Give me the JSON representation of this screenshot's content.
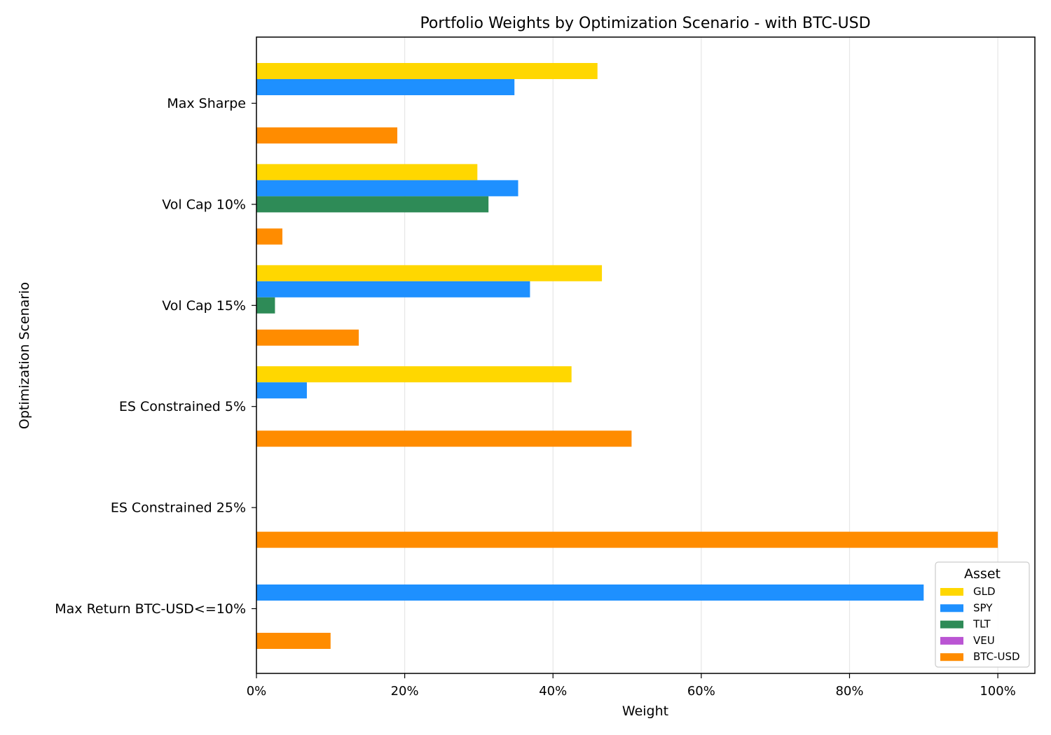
{
  "chart_data": {
    "type": "bar",
    "orientation": "horizontal",
    "title": "Portfolio Weights by Optimization Scenario - with BTC-USD",
    "xlabel": "Weight",
    "ylabel": "Optimization Scenario",
    "xlim": [
      0,
      1.05
    ],
    "x_ticks": [
      0,
      0.2,
      0.4,
      0.6,
      0.8,
      1.0
    ],
    "x_tick_labels": [
      "0%",
      "20%",
      "40%",
      "60%",
      "80%",
      "100%"
    ],
    "grid": "vertical",
    "categories": [
      "Max Sharpe",
      "Vol Cap 10%",
      "Vol Cap 15%",
      "ES Constrained 5%",
      "ES Constrained 25%",
      "Max Return BTC-USD<=10%"
    ],
    "series": [
      {
        "name": "GLD",
        "color": "#FFD700",
        "values": [
          0.46,
          0.298,
          0.466,
          0.425,
          0.0,
          0.0
        ]
      },
      {
        "name": "SPY",
        "color": "#1E90FF",
        "values": [
          0.348,
          0.353,
          0.369,
          0.068,
          0.0,
          0.9
        ]
      },
      {
        "name": "TLT",
        "color": "#2E8B57",
        "values": [
          0.0,
          0.313,
          0.025,
          0.0,
          0.0,
          0.0
        ]
      },
      {
        "name": "VEU",
        "color": "#BA55D3",
        "values": [
          0.0,
          0.0,
          0.0,
          0.0,
          0.0,
          0.0
        ]
      },
      {
        "name": "BTC-USD",
        "color": "#FF8C00",
        "values": [
          0.19,
          0.035,
          0.138,
          0.506,
          1.0,
          0.1
        ]
      }
    ],
    "legend": {
      "title": "Asset",
      "position": "lower-right"
    }
  }
}
